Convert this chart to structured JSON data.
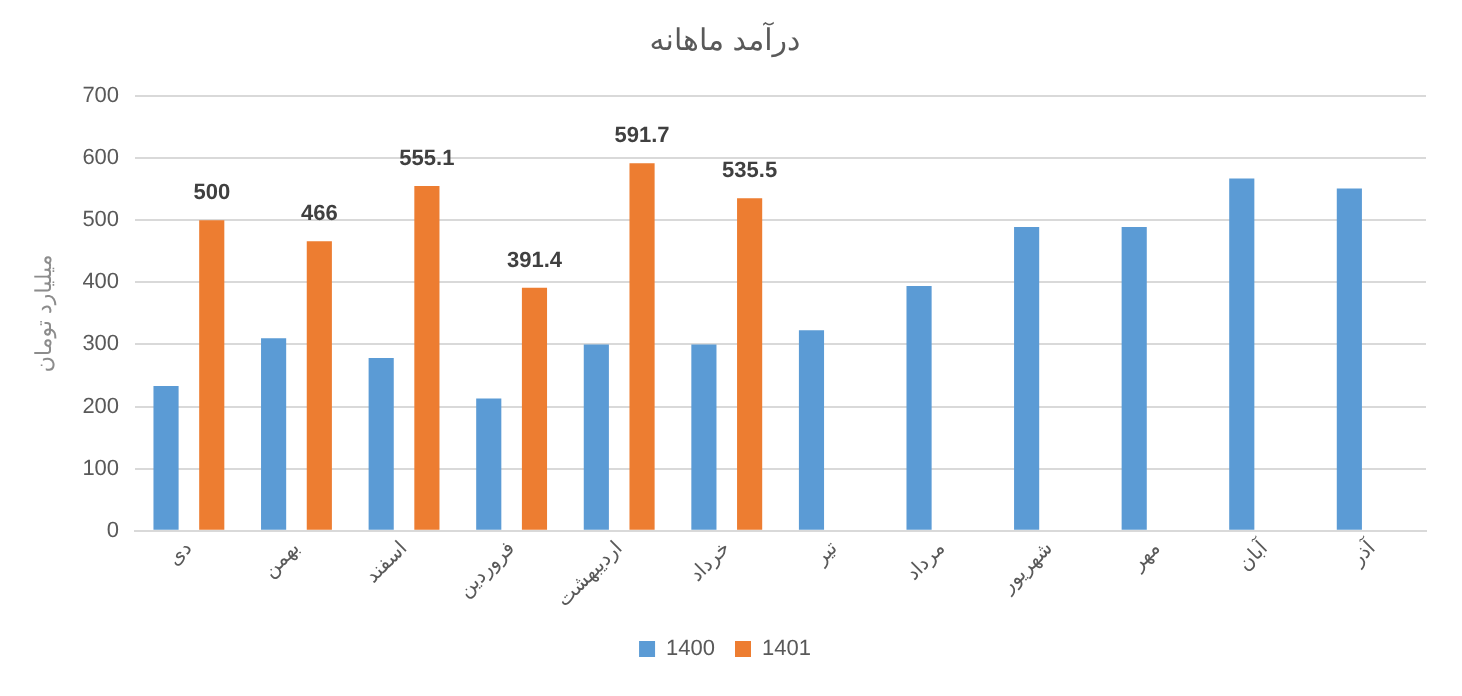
{
  "chart_data": {
    "type": "bar",
    "title": "درآمد ماهانه",
    "ylabel": "میلیارد تومان",
    "categories": [
      "دی",
      "بهمن",
      "اسفند",
      "فروردین",
      "اردیبهشت",
      "خرداد",
      "تیر",
      "مرداد",
      "شهریور",
      "مهر",
      "آبان",
      "آذر"
    ],
    "series": [
      {
        "name": "1400",
        "color": "#5b9bd5",
        "values": [
          233,
          310,
          278,
          213,
          300,
          300,
          323,
          394,
          489,
          489,
          567,
          551
        ]
      },
      {
        "name": "1401",
        "color": "#ed7d31",
        "values": [
          500,
          466,
          555.1,
          391.4,
          591.7,
          535.5,
          null,
          null,
          null,
          null,
          null,
          null
        ],
        "value_labels": [
          "500",
          "466",
          "555.1",
          "391.4",
          "591.7",
          "535.5",
          null,
          null,
          null,
          null,
          null,
          null
        ]
      }
    ],
    "ylim": [
      0,
      700
    ],
    "yticks": [
      0,
      100,
      200,
      300,
      400,
      500,
      600,
      700
    ],
    "grid": "y",
    "legend": "bottom"
  }
}
